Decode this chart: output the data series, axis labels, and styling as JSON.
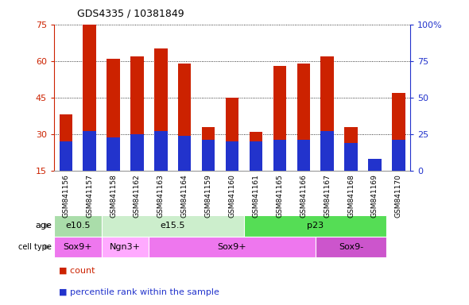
{
  "title": "GDS4335 / 10381849",
  "samples": [
    "GSM841156",
    "GSM841157",
    "GSM841158",
    "GSM841162",
    "GSM841163",
    "GSM841164",
    "GSM841159",
    "GSM841160",
    "GSM841161",
    "GSM841165",
    "GSM841166",
    "GSM841167",
    "GSM841168",
    "GSM841169",
    "GSM841170"
  ],
  "counts": [
    38,
    75,
    61,
    62,
    65,
    59,
    33,
    45,
    31,
    58,
    59,
    62,
    33,
    16,
    47
  ],
  "percentile_ranks_pct": [
    20,
    27,
    23,
    25,
    27,
    24,
    21,
    20,
    20,
    21,
    21,
    27,
    19,
    8,
    21
  ],
  "bar_color": "#cc2200",
  "pct_color": "#2233cc",
  "ylim_left": [
    15,
    75
  ],
  "ylim_right": [
    0,
    100
  ],
  "yticks_left": [
    15,
    30,
    45,
    60,
    75
  ],
  "yticks_right": [
    0,
    25,
    50,
    75,
    100
  ],
  "age_groups": [
    {
      "label": "e10.5",
      "start": 0,
      "end": 2,
      "color": "#aaddaa"
    },
    {
      "label": "e15.5",
      "start": 2,
      "end": 8,
      "color": "#cceecc"
    },
    {
      "label": "p23",
      "start": 8,
      "end": 14,
      "color": "#55dd55"
    }
  ],
  "cell_type_groups": [
    {
      "label": "Sox9+",
      "start": 0,
      "end": 2,
      "color": "#ee77ee"
    },
    {
      "label": "Ngn3+",
      "start": 2,
      "end": 4,
      "color": "#ffaaff"
    },
    {
      "label": "Sox9+",
      "start": 4,
      "end": 11,
      "color": "#ee77ee"
    },
    {
      "label": "Sox9-",
      "start": 11,
      "end": 14,
      "color": "#cc55cc"
    }
  ],
  "legend_count_color": "#cc2200",
  "legend_pct_color": "#2233cc",
  "left_axis_color": "#cc2200",
  "right_axis_color": "#2233cc",
  "background_color": "#ffffff",
  "bar_width": 0.55
}
